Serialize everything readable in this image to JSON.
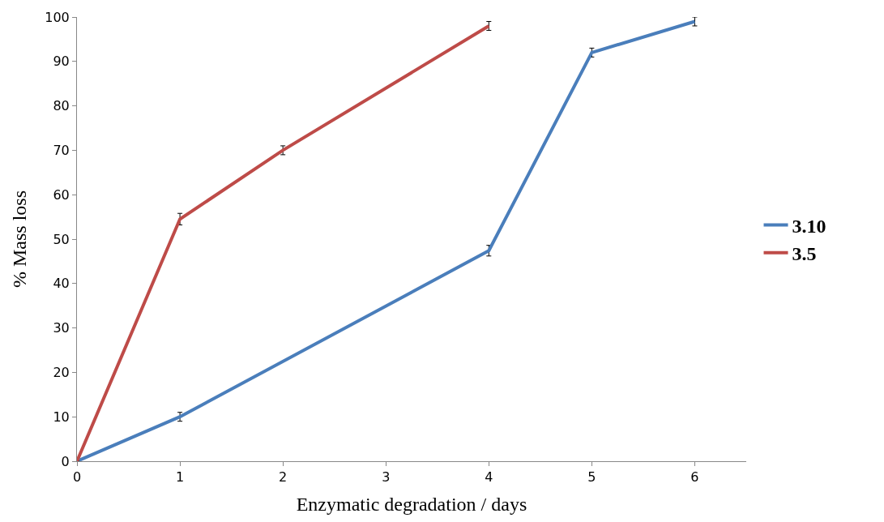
{
  "chart_data": {
    "type": "line",
    "xlabel": "Enzymatic degradation / days",
    "ylabel": "% Mass loss",
    "xlim": [
      0,
      6.5
    ],
    "xticks": [
      0,
      1,
      2,
      3,
      4,
      5,
      6
    ],
    "ylim": [
      0,
      100
    ],
    "yticks": [
      0,
      10,
      20,
      30,
      40,
      50,
      60,
      70,
      80,
      90,
      100
    ],
    "legend": "right",
    "marker": "none",
    "line_style": "solid",
    "series": [
      {
        "name": "3.10",
        "color": "#4a7ebb",
        "x": [
          0,
          1,
          4,
          5,
          6
        ],
        "values": [
          0,
          10,
          47.4,
          92,
          99
        ],
        "errors": [
          null,
          1,
          1.2,
          1,
          1
        ]
      },
      {
        "name": "3.5",
        "color": "#be4b48",
        "x": [
          0,
          1,
          2,
          4
        ],
        "values": [
          0,
          54.5,
          70,
          98
        ],
        "errors": [
          null,
          1.3,
          1,
          1
        ]
      }
    ]
  }
}
